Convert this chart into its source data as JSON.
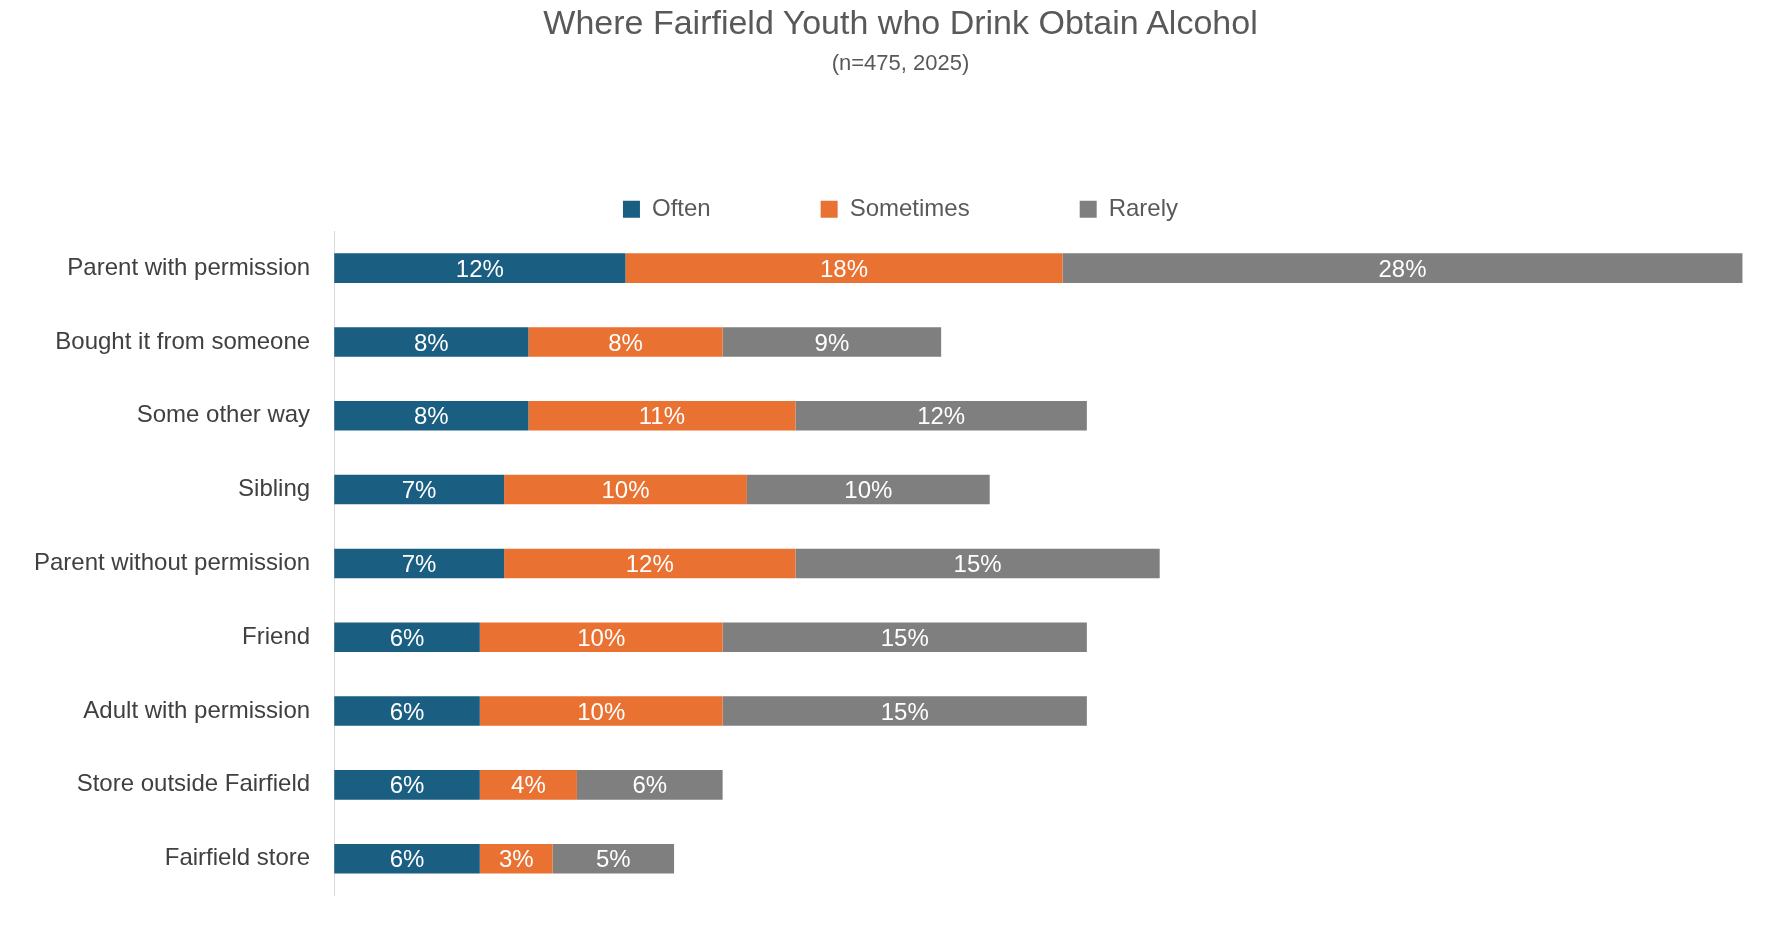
{
  "chart_data": {
    "type": "bar",
    "orientation": "horizontal",
    "stacked": true,
    "title": "Where Fairfield Youth who Drink Obtain Alcohol",
    "subtitle": "(n=475, 2025)",
    "legend": "top",
    "tick_labels": "y",
    "categories": [
      "Parent with permission",
      "Bought it from someone",
      "Some other way",
      "Sibling",
      "Parent without permission",
      "Friend",
      "Adult with permission",
      "Store outside Fairfield",
      "Fairfield store"
    ],
    "series": [
      {
        "name": "Often",
        "color": "#1a5e82",
        "values": [
          12,
          8,
          8,
          7,
          7,
          6,
          6,
          6,
          6
        ],
        "value_labels": [
          "12%",
          "8%",
          "8%",
          "7%",
          "7%",
          "6%",
          "6%",
          "6%",
          "6%"
        ]
      },
      {
        "name": "Sometimes",
        "color": "#e97132",
        "values": [
          18,
          8,
          11,
          10,
          12,
          10,
          10,
          4,
          3
        ],
        "value_labels": [
          "18%",
          "8%",
          "11%",
          "10%",
          "12%",
          "10%",
          "10%",
          "4%",
          "3%"
        ]
      },
      {
        "name": "Rarely",
        "color": "#7f7f7f",
        "values": [
          28,
          9,
          12,
          10,
          15,
          15,
          15,
          6,
          5
        ],
        "value_labels": [
          "28%",
          "9%",
          "12%",
          "10%",
          "15%",
          "15%",
          "15%",
          "6%",
          "5%"
        ]
      }
    ]
  }
}
